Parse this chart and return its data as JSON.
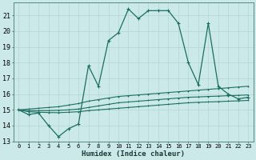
{
  "xlabel": "Humidex (Indice chaleur)",
  "xlim": [
    -0.5,
    23.5
  ],
  "ylim": [
    13,
    21.8
  ],
  "yticks": [
    13,
    14,
    15,
    16,
    17,
    18,
    19,
    20,
    21
  ],
  "xticks": [
    0,
    1,
    2,
    3,
    4,
    5,
    6,
    7,
    8,
    9,
    10,
    11,
    12,
    13,
    14,
    15,
    16,
    17,
    18,
    19,
    20,
    21,
    22,
    23
  ],
  "xtick_labels": [
    "0",
    "1",
    "2",
    "3",
    "4",
    "5",
    "6",
    "7",
    "8",
    "9",
    "10",
    "11",
    "12",
    "13",
    "14",
    "15",
    "16",
    "17",
    "18",
    "19",
    "20",
    "21",
    "22",
    "23"
  ],
  "background_color": "#cce9e9",
  "grid_color": "#b8d8d8",
  "line_color": "#1a6e60",
  "main_x": [
    0,
    1,
    2,
    3,
    4,
    5,
    6,
    7,
    8,
    9,
    10,
    11,
    12,
    13,
    14,
    15,
    16,
    17,
    18,
    19,
    20,
    21,
    22,
    23
  ],
  "main_y": [
    15.0,
    14.7,
    14.8,
    14.0,
    13.3,
    13.8,
    14.1,
    17.8,
    16.5,
    19.4,
    19.9,
    21.4,
    20.8,
    21.3,
    21.3,
    21.3,
    20.5,
    18.0,
    16.6,
    20.5,
    16.5,
    16.0,
    15.7,
    15.8
  ],
  "line2_x": [
    0,
    1,
    2,
    3,
    4,
    5,
    6,
    7,
    8,
    9,
    10,
    11,
    12,
    13,
    14,
    15,
    16,
    17,
    18,
    19,
    20,
    21,
    22,
    23
  ],
  "line2_y": [
    15.0,
    15.05,
    15.1,
    15.15,
    15.2,
    15.3,
    15.4,
    15.55,
    15.65,
    15.75,
    15.85,
    15.9,
    15.95,
    16.0,
    16.05,
    16.1,
    16.15,
    16.2,
    16.25,
    16.3,
    16.35,
    16.4,
    16.45,
    16.5
  ],
  "line3_x": [
    0,
    1,
    2,
    3,
    4,
    5,
    6,
    7,
    8,
    9,
    10,
    11,
    12,
    13,
    14,
    15,
    16,
    17,
    18,
    19,
    20,
    21,
    22,
    23
  ],
  "line3_y": [
    15.0,
    14.95,
    14.95,
    14.95,
    14.97,
    15.0,
    15.05,
    15.15,
    15.25,
    15.35,
    15.45,
    15.5,
    15.55,
    15.6,
    15.65,
    15.7,
    15.75,
    15.8,
    15.82,
    15.85,
    15.87,
    15.9,
    15.92,
    15.95
  ],
  "line4_x": [
    0,
    1,
    2,
    3,
    4,
    5,
    6,
    7,
    8,
    9,
    10,
    11,
    12,
    13,
    14,
    15,
    16,
    17,
    18,
    19,
    20,
    21,
    22,
    23
  ],
  "line4_y": [
    15.0,
    14.88,
    14.85,
    14.83,
    14.82,
    14.85,
    14.88,
    14.95,
    15.0,
    15.05,
    15.1,
    15.15,
    15.2,
    15.25,
    15.3,
    15.35,
    15.4,
    15.45,
    15.48,
    15.5,
    15.52,
    15.55,
    15.57,
    15.6
  ]
}
